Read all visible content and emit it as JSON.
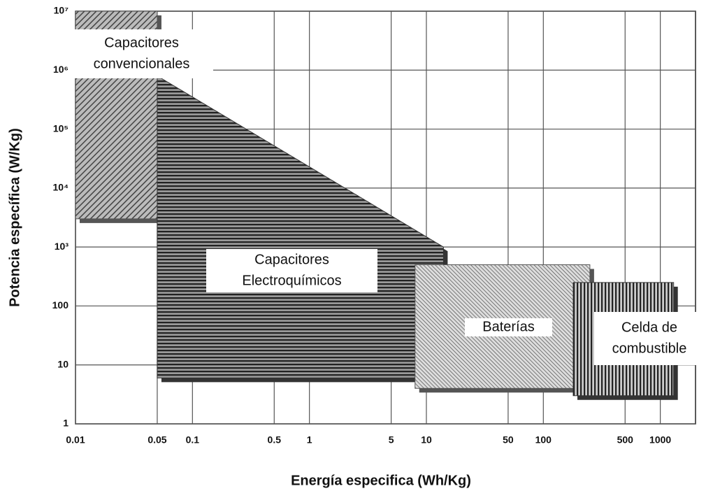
{
  "chart_data": {
    "type": "region",
    "xlabel": "Energía especifica (Wh/Kg)",
    "ylabel": "Potencia específica (W/Kg)",
    "xscale": "log",
    "yscale": "log",
    "grid": true,
    "xlim": [
      0.01,
      2000
    ],
    "ylim": [
      1,
      10000000
    ],
    "xticks": [
      0.01,
      0.05,
      0.1,
      0.5,
      1,
      5,
      10,
      50,
      100,
      500,
      1000
    ],
    "yticks": [
      {
        "value": 1,
        "label": "1"
      },
      {
        "value": 10,
        "label": "10"
      },
      {
        "value": 100,
        "label": "100"
      },
      {
        "value": 1000,
        "label": "10³"
      },
      {
        "value": 10000,
        "label": "10⁴"
      },
      {
        "value": 100000,
        "label": "10⁵"
      },
      {
        "value": 1000000,
        "label": "10⁶"
      },
      {
        "value": 10000000,
        "label": "10⁷"
      }
    ],
    "regions": [
      {
        "label": [
          "Capacitores",
          "convencionales"
        ],
        "color": "#555555",
        "hatch": "diagonal",
        "x": [
          0.01,
          0.01,
          0.05,
          0.05
        ],
        "y": [
          3000,
          10000000,
          10000000,
          3000
        ]
      },
      {
        "label": [
          "Capacitores",
          "Electroquímicos"
        ],
        "color": "#333333",
        "hatch": "horizontal",
        "x": [
          0.05,
          0.05,
          14,
          14
        ],
        "y": [
          6,
          800000,
          1000,
          6
        ]
      },
      {
        "label": [
          "Baterías"
        ],
        "color": "#555555",
        "hatch": "fine-diagonal",
        "x": [
          8,
          8,
          250,
          250
        ],
        "y": [
          4,
          500,
          500,
          4
        ]
      },
      {
        "label": [
          "Celda de",
          "combustible"
        ],
        "color": "#333333",
        "hatch": "vertical",
        "x": [
          180,
          180,
          1300,
          1300
        ],
        "y": [
          3,
          250,
          250,
          3
        ]
      }
    ]
  }
}
